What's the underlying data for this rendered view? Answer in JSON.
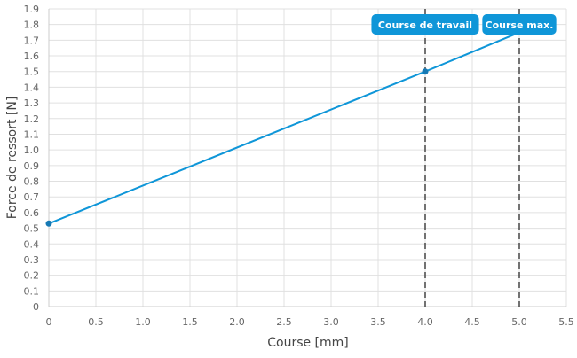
{
  "chart_data": {
    "type": "line",
    "title": "",
    "xlabel": "Course [mm]",
    "ylabel": "Force de ressort [N]",
    "xlim": [
      0,
      5.5
    ],
    "ylim": [
      0,
      1.9
    ],
    "x_ticks": [
      "0",
      "0.5",
      "1.0",
      "1.5",
      "2.0",
      "2.5",
      "3.0",
      "3.5",
      "4.0",
      "4.5",
      "5.0",
      "5.5"
    ],
    "y_ticks": [
      "0",
      "0.1",
      "0.2",
      "0.3",
      "0.4",
      "0.5",
      "0.6",
      "0.7",
      "0.8",
      "0.9",
      "1.0",
      "1.1",
      "1.2",
      "1.3",
      "1.4",
      "1.5",
      "1.6",
      "1.7",
      "1.8",
      "1.9"
    ],
    "grid": true,
    "series": [
      {
        "x": [
          0,
          4,
          5
        ],
        "y": [
          0.53,
          1.5,
          1.75
        ],
        "color": "#0f96d8",
        "markers_at": [
          0,
          4
        ]
      }
    ],
    "annotations": [
      {
        "x": 4,
        "label": "Course de travail",
        "style": "dashed-vertical-line"
      },
      {
        "x": 5,
        "label": "Course max.",
        "style": "dashed-vertical-line"
      }
    ],
    "colors": {
      "line": "#0f96d8",
      "marker": "#1679b4",
      "label_bg": "#0f96d8",
      "grid": "#e0e0e0",
      "dash": "#444444"
    }
  }
}
